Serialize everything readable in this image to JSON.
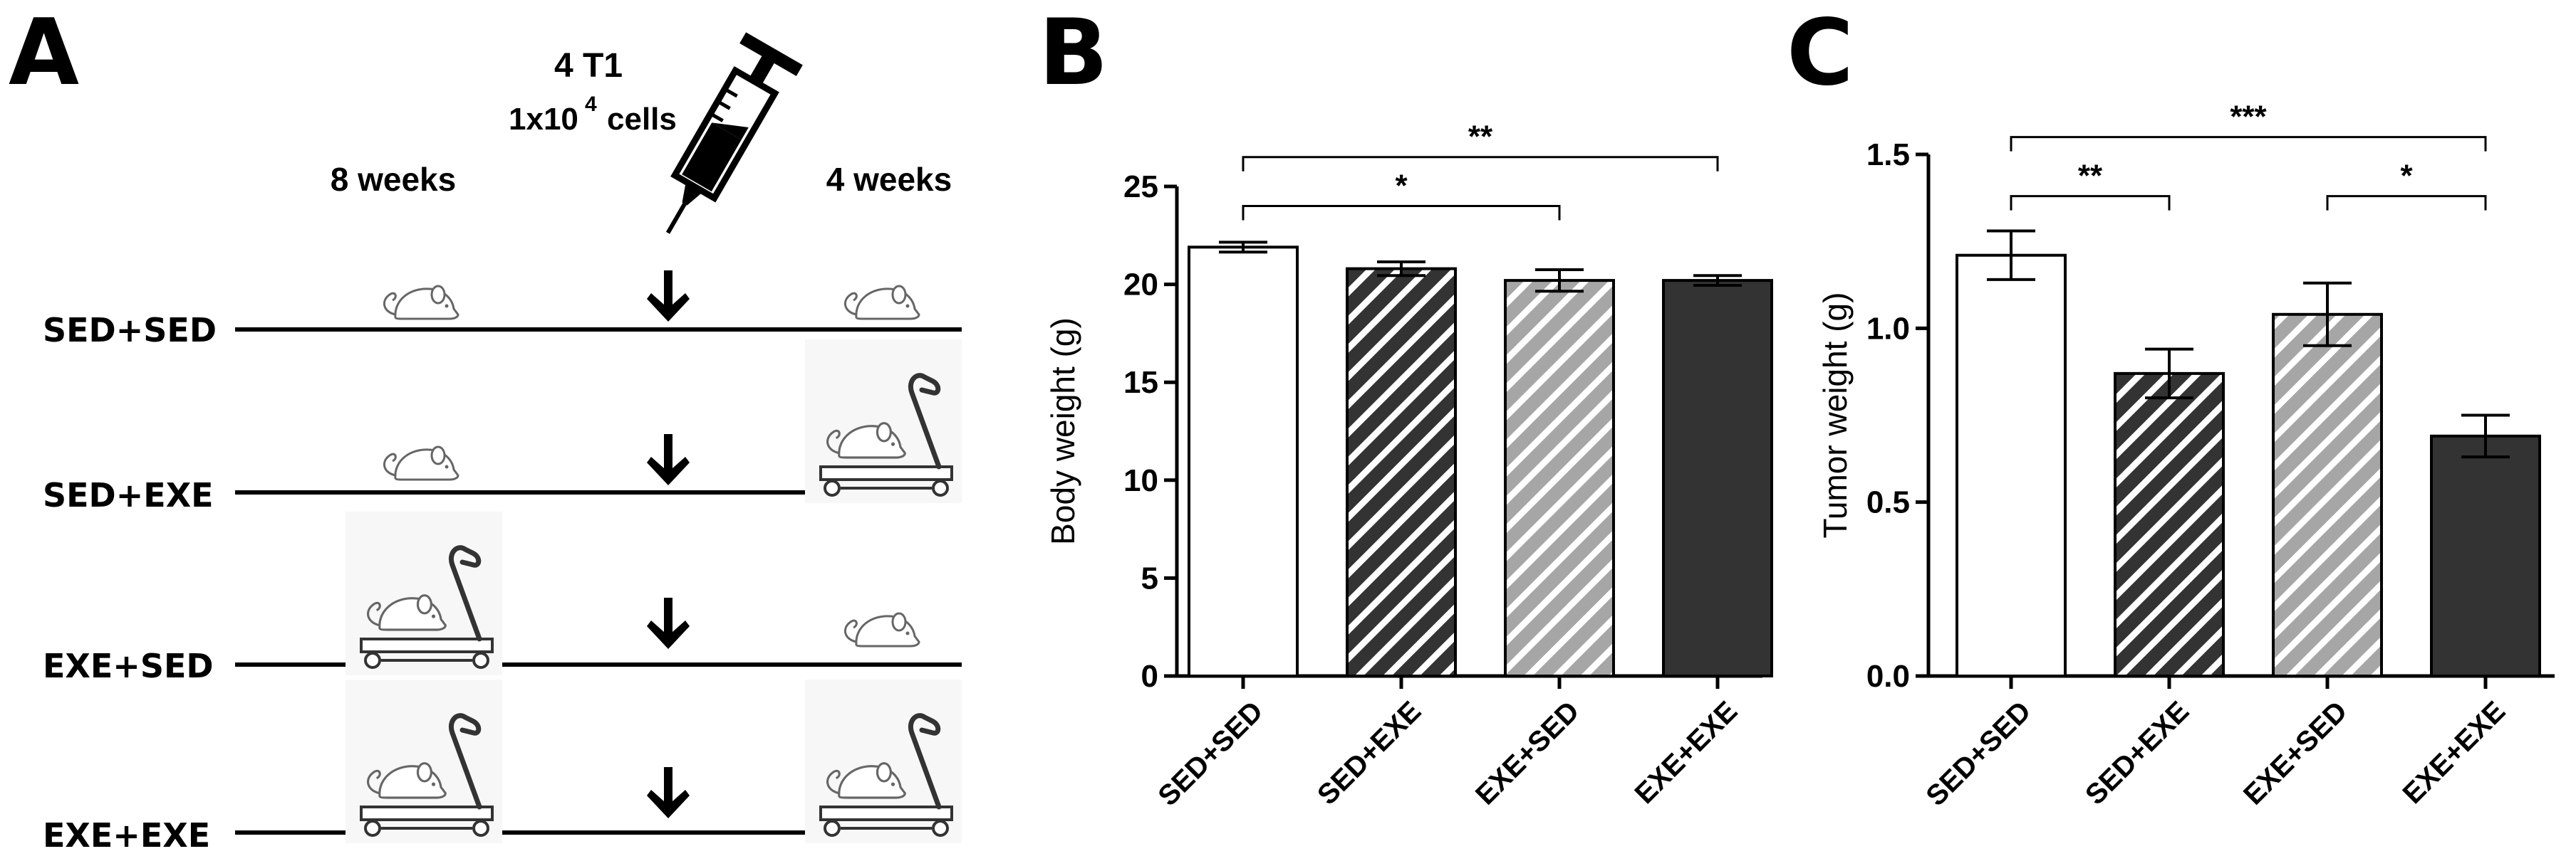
{
  "panel_a": {
    "letter": "A",
    "injection_title": "4 T1",
    "injection_cells_base": "1x10",
    "injection_cells_exp": "4",
    "injection_cells_unit": "cells",
    "period_1": "8 weeks",
    "period_2": "4 weeks",
    "groups": [
      {
        "label": "SED+SED",
        "phase1": "sedentary",
        "phase2": "sedentary"
      },
      {
        "label": "SED+EXE",
        "phase1": "sedentary",
        "phase2": "exercise"
      },
      {
        "label": "EXE+SED",
        "phase1": "exercise",
        "phase2": "sedentary"
      },
      {
        "label": "EXE+EXE",
        "phase1": "exercise",
        "phase2": "exercise"
      }
    ],
    "icons": {
      "sedentary": "mouse-icon",
      "exercise": "treadmill-mouse-icon",
      "injection": "syringe-icon",
      "arrow": "arrow-down-icon"
    }
  },
  "chart_data": [
    {
      "panel": "B",
      "type": "bar",
      "title": "",
      "xlabel": "",
      "ylabel": "Body weight (g)",
      "ylim": [
        0,
        25
      ],
      "yticks": [
        0,
        5,
        10,
        15,
        20,
        25
      ],
      "ytick_labels": [
        "0",
        "5",
        "10",
        "15",
        "20",
        "25"
      ],
      "categories": [
        "SED+SED",
        "SED+EXE",
        "EXE+SED",
        "EXE+EXE"
      ],
      "values": [
        21.9,
        20.8,
        20.2,
        20.2
      ],
      "errors": [
        0.25,
        0.35,
        0.55,
        0.25
      ],
      "fills": [
        "white",
        "dark-hatch",
        "light-hatch",
        "solid-dark"
      ],
      "significance": [
        {
          "from": 0,
          "to": 2,
          "label": "*",
          "level": 24.0
        },
        {
          "from": 0,
          "to": 3,
          "label": "**",
          "level": 26.5
        }
      ]
    },
    {
      "panel": "C",
      "type": "bar",
      "title": "",
      "xlabel": "",
      "ylabel": "Tumor weight (g)",
      "ylim": [
        0,
        1.5
      ],
      "yticks": [
        0,
        0.5,
        1.0,
        1.5
      ],
      "ytick_labels": [
        "0.0",
        "0.5",
        "1.0",
        "1.5"
      ],
      "categories": [
        "SED+SED",
        "SED+EXE",
        "EXE+SED",
        "EXE+EXE"
      ],
      "values": [
        1.21,
        0.87,
        1.04,
        0.69
      ],
      "errors": [
        0.07,
        0.07,
        0.09,
        0.06
      ],
      "fills": [
        "white",
        "dark-hatch",
        "light-hatch",
        "solid-dark"
      ],
      "significance": [
        {
          "from": 0,
          "to": 1,
          "label": "**",
          "level": 1.38
        },
        {
          "from": 2,
          "to": 3,
          "label": "*",
          "level": 1.38
        },
        {
          "from": 0,
          "to": 3,
          "label": "***",
          "level": 1.55
        }
      ]
    }
  ],
  "panel_letters": {
    "b": "B",
    "c": "C"
  },
  "colors": {
    "dark_fill": "#333333",
    "light_hatch": "#a6a6a6",
    "line": "#000000"
  }
}
